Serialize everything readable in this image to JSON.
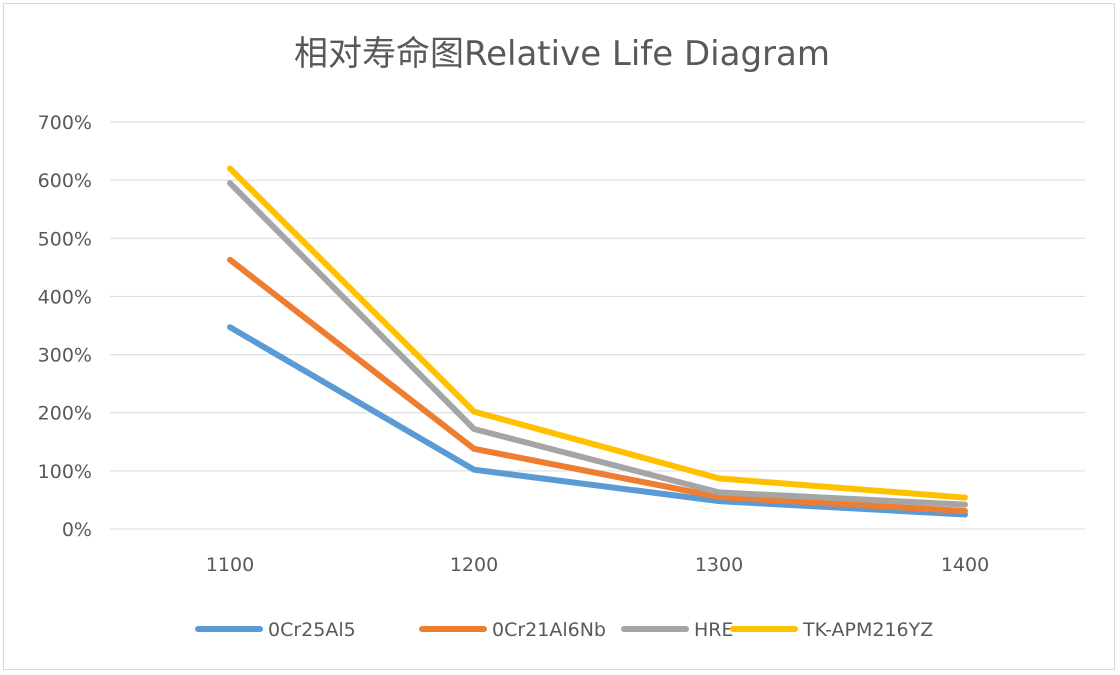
{
  "chart_data": {
    "type": "line",
    "title": "相对寿命图Relative Life Diagram",
    "xlabel": "",
    "ylabel": "",
    "categories": [
      "1100",
      "1200",
      "1300",
      "1400"
    ],
    "ylim": [
      0,
      7
    ],
    "yticks": [
      {
        "value": 0,
        "label": "0%"
      },
      {
        "value": 1,
        "label": "100%"
      },
      {
        "value": 2,
        "label": "200%"
      },
      {
        "value": 3,
        "label": "300%"
      },
      {
        "value": 4,
        "label": "400%"
      },
      {
        "value": 5,
        "label": "500%"
      },
      {
        "value": 6,
        "label": "600%"
      },
      {
        "value": 7,
        "label": "700%"
      }
    ],
    "grid": true,
    "legend_position": "bottom",
    "series": [
      {
        "name": "0Cr25Al5",
        "color": "#5B9BD5",
        "values": [
          3.47,
          1.02,
          0.48,
          0.25
        ]
      },
      {
        "name": "0Cr21Al6Nb",
        "color": "#ED7D31",
        "values": [
          4.63,
          1.38,
          0.55,
          0.31
        ]
      },
      {
        "name": "HRE",
        "color": "#A5A5A5",
        "values": [
          5.95,
          1.72,
          0.63,
          0.42
        ]
      },
      {
        "name": "TK-APM216YZ",
        "color": "#FFC000",
        "values": [
          6.2,
          2.02,
          0.87,
          0.54
        ]
      }
    ]
  }
}
